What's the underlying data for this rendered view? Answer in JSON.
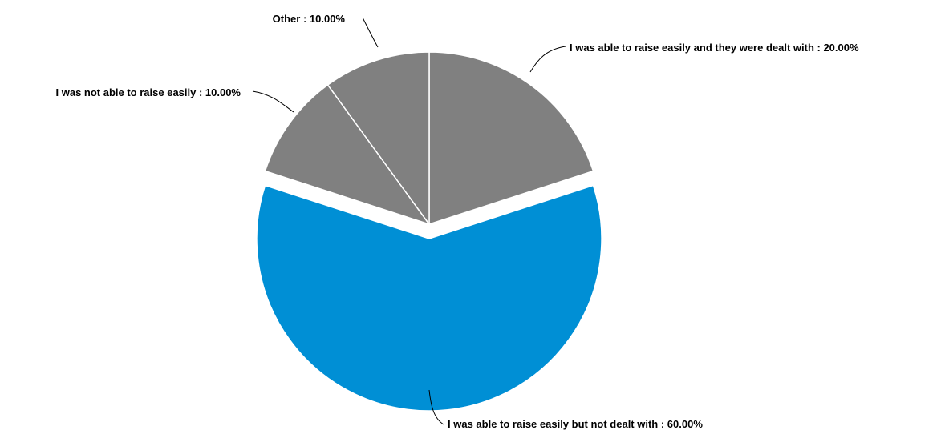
{
  "chart_data": {
    "type": "pie",
    "title": "",
    "legend": "none",
    "slices": [
      {
        "name": "I was able to raise easily and they were dealt with",
        "value": 20.0,
        "label": "I was able to raise easily and they were dealt with  : 20.00%",
        "color": "#808080",
        "exploded": false
      },
      {
        "name": "I was able to raise easily but not dealt with",
        "value": 60.0,
        "label": "I was able to raise easily but not dealt with  : 60.00%",
        "color": "#008fd5",
        "exploded": true
      },
      {
        "name": "I was not able to raise easily",
        "value": 10.0,
        "label": "I was not able to raise easily : 10.00%",
        "color": "#808080",
        "exploded": false
      },
      {
        "name": "Other",
        "value": 10.0,
        "label": "Other : 10.00%",
        "color": "#808080",
        "exploded": false
      }
    ],
    "slice_border_color": "#ffffff"
  }
}
